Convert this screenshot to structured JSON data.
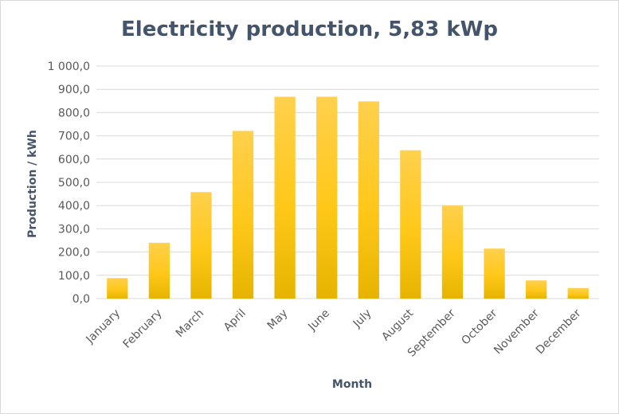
{
  "chart_data": {
    "type": "bar",
    "title": "Electricity production, 5,83 kWp",
    "xlabel": "Month",
    "ylabel": "Production / kWh",
    "categories": [
      "January",
      "February",
      "March",
      "April",
      "May",
      "June",
      "July",
      "August",
      "September",
      "October",
      "November",
      "December"
    ],
    "values": [
      88,
      240,
      458,
      721,
      868,
      868,
      848,
      638,
      400,
      215,
      78,
      45
    ],
    "ylim": [
      0,
      1000
    ],
    "yticks": [
      "0,0",
      "100,0",
      "200,0",
      "300,0",
      "400,0",
      "500,0",
      "600,0",
      "700,0",
      "800,0",
      "900,0",
      "1 000,0"
    ],
    "grid": true,
    "legend": "none",
    "colors": {
      "bar_top": "#ffd04d",
      "bar_bottom": "#e6b400",
      "title": "#44546a",
      "axis_title": "#44546a",
      "tick": "#595959",
      "grid": "#d9d9d9"
    }
  }
}
